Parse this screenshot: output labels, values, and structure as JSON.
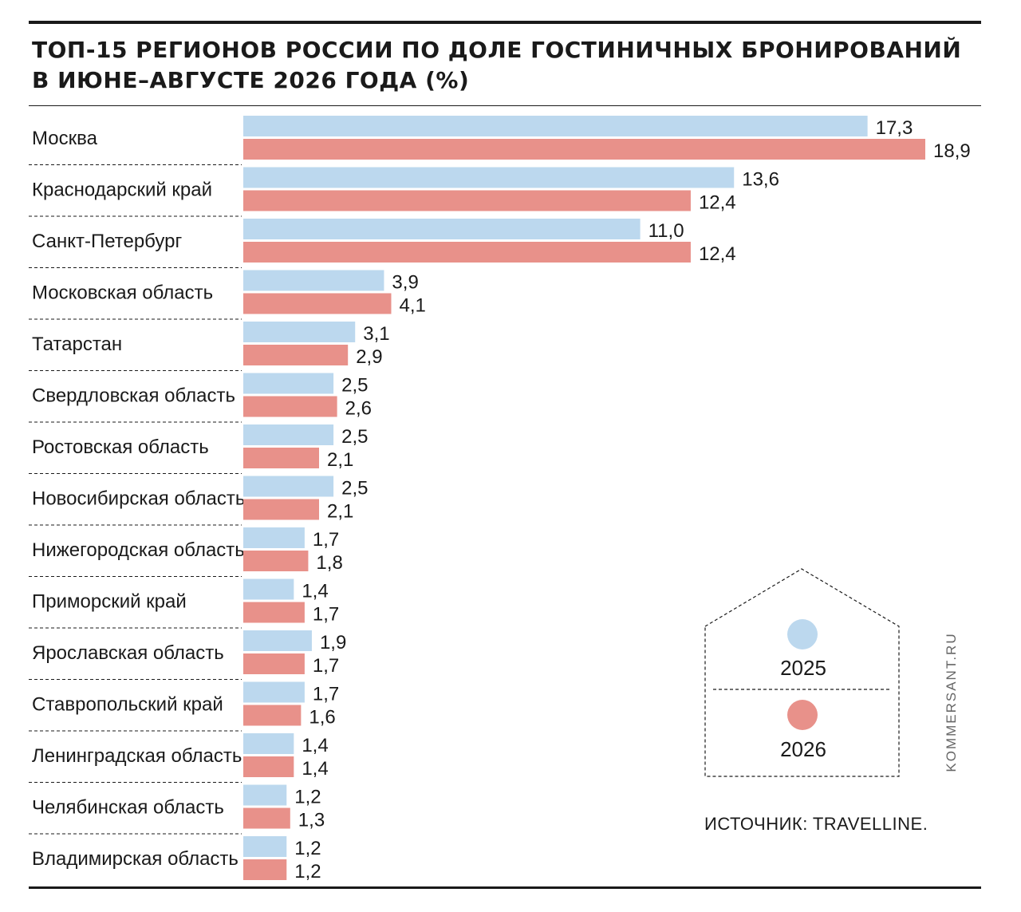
{
  "header": {
    "title": "ТОП-15 РЕГИОНОВ РОССИИ ПО ДОЛЕ ГОСТИНИЧНЫХ БРОНИРОВАНИЙ В ИЮНЕ–АВГУСТЕ 2026 ГОДА (%)"
  },
  "colors": {
    "series_2025": "#bcd8ee",
    "series_2026": "#e8918a",
    "text": "#1a1a1a"
  },
  "chart_data": {
    "type": "bar",
    "orientation": "horizontal",
    "title": "ТОП-15 РЕГИОНОВ РОССИИ ПО ДОЛЕ ГОСТИНИЧНЫХ БРОНИРОВАНИЙ В ИЮНЕ–АВГУСТЕ 2026 ГОДА (%)",
    "categories": [
      "Москва",
      "Краснодарский край",
      "Санкт-Петербург",
      "Московская область",
      "Татарстан",
      "Свердловская область",
      "Ростовская область",
      "Новосибирская область",
      "Нижегородская область",
      "Приморский край",
      "Ярославская область",
      "Ставропольский край",
      "Ленинградская область",
      "Челябинская область",
      "Владимирская область"
    ],
    "series": [
      {
        "name": "2025",
        "values": [
          17.3,
          13.6,
          11.0,
          3.9,
          3.1,
          2.5,
          2.5,
          2.5,
          1.7,
          1.4,
          1.9,
          1.7,
          1.4,
          1.2,
          1.2
        ],
        "labels": [
          "17,3",
          "13,6",
          "11,0",
          "3,9",
          "3,1",
          "2,5",
          "2,5",
          "2,5",
          "1,7",
          "1,4",
          "1,9",
          "1,7",
          "1,4",
          "1,2",
          "1,2"
        ]
      },
      {
        "name": "2026",
        "values": [
          18.9,
          12.4,
          12.4,
          4.1,
          2.9,
          2.6,
          2.1,
          2.1,
          1.8,
          1.7,
          1.7,
          1.6,
          1.4,
          1.3,
          1.2
        ],
        "labels": [
          "18,9",
          "12,4",
          "12,4",
          "4,1",
          "2,9",
          "2,6",
          "2,1",
          "2,1",
          "1,8",
          "1,7",
          "1,7",
          "1,6",
          "1,4",
          "1,3",
          "1,2"
        ]
      }
    ],
    "xlim": [
      0,
      18.9
    ],
    "grid": false,
    "legend_position": "bottom-right"
  },
  "legend": {
    "items": [
      "2025",
      "2026"
    ]
  },
  "footer": {
    "source_label": "ИСТОЧНИК:",
    "source_name": "TRAVELLINE.",
    "brand": "KOMMERSANT.RU"
  }
}
